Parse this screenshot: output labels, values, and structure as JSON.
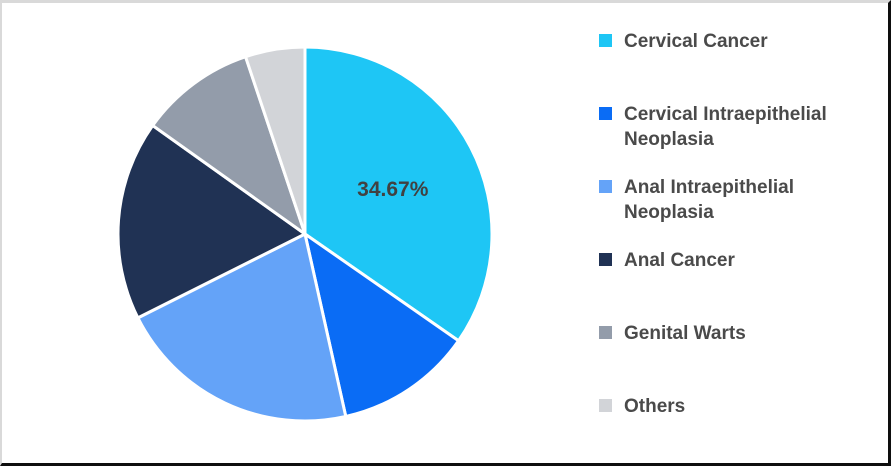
{
  "page": {
    "background": "#FFFFFF",
    "border_top_left_color": "#D9D9D9",
    "border_bottom_right_color": "#0E0E0E"
  },
  "chart_data": {
    "type": "pie",
    "title": "",
    "legend_position": "right",
    "start_angle_deg": 0,
    "direction": "clockwise",
    "separator_color": "#FFFFFF",
    "label_color": "#414141",
    "legend_text_color": "#4A4A4A",
    "series": [
      {
        "name": "Cervical Cancer",
        "value": 34.67,
        "color": "#1EC6F5",
        "data_label": "34.67%"
      },
      {
        "name": "Cervical Intraepithelial Neoplasia",
        "value": 11.83,
        "color": "#0A6CF5"
      },
      {
        "name": "Anal Intraepithelial Neoplasia",
        "value": 21.1,
        "color": "#64A3F8"
      },
      {
        "name": "Anal Cancer",
        "value": 17.25,
        "color": "#203254"
      },
      {
        "name": "Genital Warts",
        "value": 10.0,
        "color": "#939CAA"
      },
      {
        "name": "Others",
        "value": 5.15,
        "color": "#D2D4D8"
      }
    ]
  }
}
